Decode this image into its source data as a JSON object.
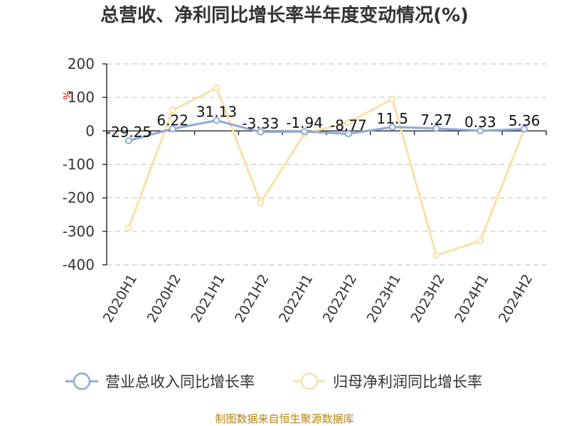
{
  "chart_data": {
    "type": "line",
    "title": "总营收、净利同比增长率半年度变动情况(%)",
    "ylabel": "%",
    "xlabel": "",
    "ylim": [
      -400,
      200
    ],
    "yticks": [
      200,
      100,
      0,
      -100,
      -200,
      -300,
      -400
    ],
    "categories": [
      "2020H1",
      "2020H2",
      "2021H1",
      "2021H2",
      "2022H1",
      "2022H2",
      "2023H1",
      "2023H2",
      "2024H1",
      "2024H2"
    ],
    "grid": true,
    "legend_position": "bottom",
    "series": [
      {
        "name": "营业总收入同比增长率",
        "color": "#8fa9d6",
        "values": [
          -29.25,
          6.22,
          31.13,
          -3.33,
          -1.94,
          -8.77,
          11.5,
          7.27,
          0.33,
          5.36
        ],
        "labels": [
          "-29.25",
          "6.22",
          "31.13",
          "-3.33",
          "-1.94",
          "-8.77",
          "11.5",
          "7.27",
          "0.33",
          "5.36"
        ]
      },
      {
        "name": "归母净利润同比增长率",
        "color": "#fbe0a6",
        "values": [
          -290,
          62,
          128,
          -215,
          -8,
          25,
          95,
          -372,
          -328,
          5
        ]
      }
    ],
    "source": "制图数据来自恒生聚源数据库"
  }
}
